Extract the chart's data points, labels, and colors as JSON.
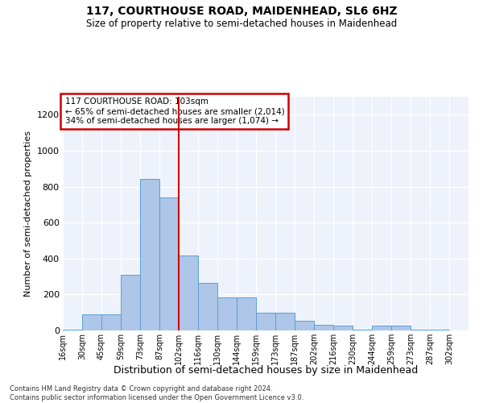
{
  "title": "117, COURTHOUSE ROAD, MAIDENHEAD, SL6 6HZ",
  "subtitle": "Size of property relative to semi-detached houses in Maidenhead",
  "xlabel": "Distribution of semi-detached houses by size in Maidenhead",
  "ylabel": "Number of semi-detached properties",
  "footer_line1": "Contains HM Land Registry data © Crown copyright and database right 2024.",
  "footer_line2": "Contains public sector information licensed under the Open Government Licence v3.0.",
  "annotation_title": "117 COURTHOUSE ROAD: 103sqm",
  "annotation_line1": "← 65% of semi-detached houses are smaller (2,014)",
  "annotation_line2": "34% of semi-detached houses are larger (1,074) →",
  "bin_labels": [
    "16sqm",
    "30sqm",
    "45sqm",
    "59sqm",
    "73sqm",
    "87sqm",
    "102sqm",
    "116sqm",
    "130sqm",
    "144sqm",
    "159sqm",
    "173sqm",
    "187sqm",
    "202sqm",
    "216sqm",
    "230sqm",
    "244sqm",
    "259sqm",
    "273sqm",
    "287sqm",
    "302sqm"
  ],
  "bar_heights": [
    5,
    90,
    90,
    310,
    845,
    740,
    415,
    265,
    185,
    185,
    100,
    100,
    55,
    30,
    25,
    5,
    25,
    25,
    5,
    5,
    0
  ],
  "bar_color": "#aec6e8",
  "bar_edge_color": "#5a9fd4",
  "vline_color": "#cc0000",
  "vline_index": 6,
  "annotation_box_color": "#cc0000",
  "background_color": "#eef2fb",
  "ylim": [
    0,
    1300
  ],
  "yticks": [
    0,
    200,
    400,
    600,
    800,
    1000,
    1200
  ]
}
